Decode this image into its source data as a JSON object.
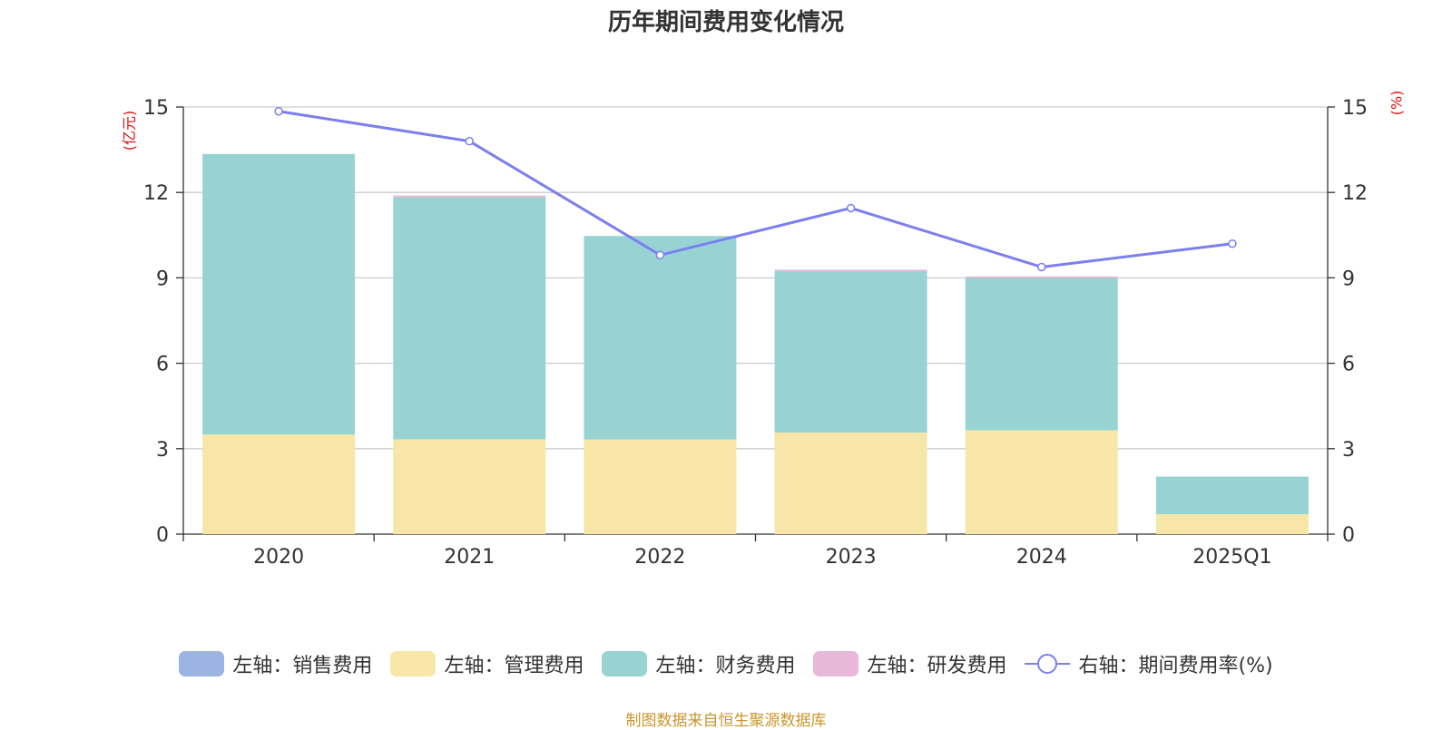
{
  "chart_data": {
    "type": "bar",
    "title": "历年期间费用变化情况",
    "categories": [
      "2020",
      "2021",
      "2022",
      "2023",
      "2024",
      "2025Q1"
    ],
    "left_axis": {
      "unit_label": "(亿元)",
      "ylim": [
        0,
        15
      ],
      "ticks": [
        0,
        3,
        6,
        9,
        12,
        15
      ]
    },
    "right_axis": {
      "unit_label": "(%)",
      "ylim": [
        0,
        15
      ],
      "ticks": [
        0,
        3,
        6,
        9,
        12,
        15
      ]
    },
    "stacked": true,
    "grid": true,
    "legend_position": "bottom",
    "series": [
      {
        "name": "左轴：销售费用",
        "axis": "left",
        "type": "bar",
        "color": "#9db4e3",
        "values": [
          0,
          0,
          0,
          0,
          0,
          0
        ]
      },
      {
        "name": "左轴：管理费用",
        "axis": "left",
        "type": "bar",
        "color": "#f7e6a7",
        "values": [
          3.5,
          3.33,
          3.32,
          3.57,
          3.65,
          0.7
        ]
      },
      {
        "name": "左轴：财务费用",
        "axis": "left",
        "type": "bar",
        "color": "#98d3d4",
        "values": [
          9.85,
          8.5,
          7.15,
          5.67,
          5.35,
          1.32
        ]
      },
      {
        "name": "左轴：研发费用",
        "axis": "left",
        "type": "bar",
        "color": "#e8b8d8",
        "values": [
          0,
          0.06,
          0,
          0.05,
          0.05,
          0
        ]
      },
      {
        "name": "右轴：期间费用率(%)",
        "axis": "right",
        "type": "line",
        "color": "#7b7ff0",
        "values": [
          14.85,
          13.8,
          9.8,
          11.45,
          9.38,
          10.2
        ]
      }
    ]
  },
  "source_note": "制图数据来自恒生聚源数据库"
}
